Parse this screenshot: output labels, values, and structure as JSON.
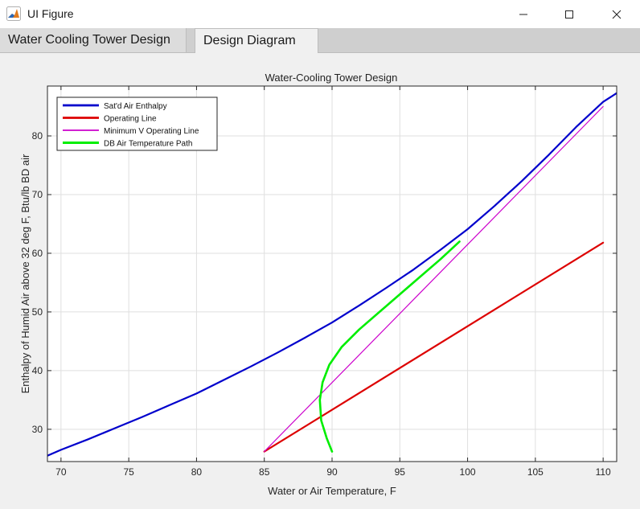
{
  "window": {
    "title": "UI Figure"
  },
  "tabs": [
    {
      "label": "Water Cooling Tower Design",
      "active": false
    },
    {
      "label": "Design Diagram",
      "active": true
    }
  ],
  "chart_data": {
    "type": "line",
    "title": "Water-Cooling Tower Design",
    "xlabel": "Water or Air Temperature, F",
    "ylabel": "Enthalpy of Humid Air above 32 deg F, Btu/lb BD air",
    "xlim": [
      69,
      111
    ],
    "ylim": [
      24.5,
      88.5
    ],
    "xticks": [
      70,
      75,
      80,
      85,
      90,
      95,
      100,
      105,
      110
    ],
    "yticks": [
      30,
      40,
      50,
      60,
      70,
      80
    ],
    "grid": true,
    "legend_position": "top-left",
    "series": [
      {
        "name": "Sat'd Air Enthalpy",
        "color": "#0000cc",
        "width": 2.2,
        "x": [
          69,
          70,
          72,
          74,
          76,
          78,
          80,
          82,
          84,
          86,
          88,
          90,
          92,
          94,
          96,
          98,
          100,
          102,
          104,
          106,
          108,
          110,
          111
        ],
        "y": [
          25.5,
          26.5,
          28.3,
          30.2,
          32.1,
          34.1,
          36.1,
          38.4,
          40.7,
          43.1,
          45.6,
          48.2,
          51.1,
          54.1,
          57.2,
          60.6,
          64.1,
          68.1,
          72.3,
          76.8,
          81.5,
          85.8,
          87.3
        ]
      },
      {
        "name": "Operating Line",
        "color": "#dd0000",
        "width": 2.2,
        "x": [
          85,
          110
        ],
        "y": [
          26.2,
          61.8
        ]
      },
      {
        "name": "Minimum V Operating Line",
        "color": "#cc00cc",
        "width": 1.2,
        "x": [
          85,
          110
        ],
        "y": [
          26.2,
          85.0
        ]
      },
      {
        "name": "DB Air Temperature Path",
        "color": "#00ee00",
        "width": 2.6,
        "x": [
          90,
          89.6,
          89.2,
          89.1,
          89.3,
          89.8,
          90.7,
          92,
          93.5,
          95,
          96.5,
          98,
          99.4
        ],
        "y": [
          26.2,
          28.5,
          31.5,
          35,
          38,
          41,
          44,
          47,
          50,
          53,
          56,
          59,
          62
        ]
      }
    ]
  }
}
